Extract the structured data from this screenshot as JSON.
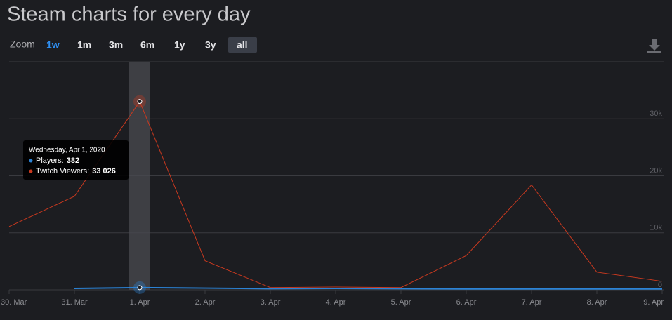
{
  "chart_data": {
    "type": "line",
    "title": "Steam charts for every day",
    "zoom_label": "Zoom",
    "zoom_buttons": [
      "1w",
      "1m",
      "3m",
      "6m",
      "1y",
      "3y",
      "all"
    ],
    "selected_zoom": "1w",
    "categories": [
      "30. Mar",
      "31. Mar",
      "1. Apr",
      "2. Apr",
      "3. Apr",
      "4. Apr",
      "5. Apr",
      "6. Apr",
      "7. Apr",
      "8. Apr",
      "9. Apr"
    ],
    "series": [
      {
        "color": "#2b83d6",
        "values": [
          null,
          250,
          382,
          300,
          200,
          250,
          200,
          150,
          150,
          150,
          150
        ]
      },
      {
        "color": "#c9391f",
        "values": [
          11100,
          16400,
          33026,
          5100,
          400,
          500,
          400,
          6000,
          18400,
          3100,
          1500
        ]
      }
    ],
    "ylim": [
      0,
      40000
    ],
    "yticks": [
      0,
      {
        "value": 10000,
        "label": "10k"
      },
      {
        "value": 20000,
        "label": "20k"
      },
      {
        "value": 30000,
        "label": "30k"
      }
    ],
    "grid": true,
    "tooltip": {
      "title": "Wednesday, Apr 1, 2020",
      "category": "1. Apr",
      "entries": [
        {
          "label": "Players:",
          "value": "382"
        },
        {
          "label": "Twitch Viewers:",
          "value": "33 026"
        }
      ]
    }
  }
}
